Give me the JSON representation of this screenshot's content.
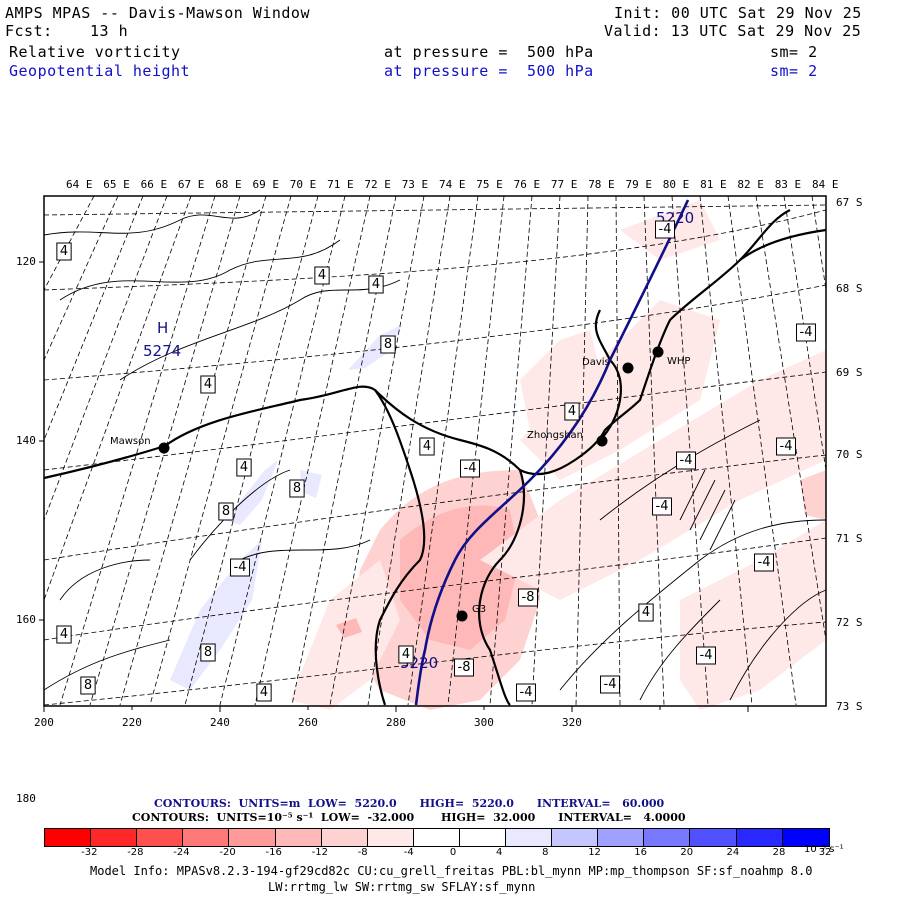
{
  "header": {
    "title": "AMPS MPAS -- Davis-Mawson Window",
    "fcst_label": "Fcst:",
    "fcst_value": "13 h",
    "init": "Init: 00 UTC Sat 29 Nov 25",
    "valid": "Valid: 13 UTC Sat 29 Nov 25",
    "field1": {
      "name": "Relative vorticity",
      "pressure": "at pressure =  500 hPa",
      "sm": "sm= 2"
    },
    "field2": {
      "name": "Geopotential height",
      "pressure": "at pressure =  500 hPa",
      "sm": "sm= 2"
    }
  },
  "axes": {
    "top_lon_labels": [
      "64 E",
      "65 E",
      "66 E",
      "67 E",
      "68 E",
      "69 E",
      "70 E",
      "71 E",
      "72 E",
      "73 E",
      "74 E",
      "75 E",
      "76 E",
      "77 E",
      "78 E",
      "79 E",
      "80 E",
      "81 E",
      "82 E",
      "83 E",
      "84 E"
    ],
    "right_lat_labels": [
      "67 S",
      "68 S",
      "69 S",
      "70 S",
      "71 S",
      "72 S",
      "73 S"
    ],
    "bottom_x_ticks": [
      "200",
      "220",
      "240",
      "260",
      "280",
      "300",
      "320"
    ],
    "left_y_ticks": [
      "120",
      "140",
      "160",
      "180"
    ]
  },
  "stations": [
    {
      "name": "Mawson"
    },
    {
      "name": "Davis"
    },
    {
      "name": "WHP"
    },
    {
      "name": "Zhongshan"
    },
    {
      "name": "G3"
    }
  ],
  "height_labels": {
    "high_letter": "H",
    "high_value": "5274",
    "contour_top": "5220",
    "contour_bottom": "5220"
  },
  "vorticity_labels": [
    "4",
    "4",
    "4",
    "4",
    "8",
    "4",
    "-4",
    "-4",
    "4",
    "-4",
    "4",
    "8",
    "8",
    "-4",
    "-4",
    "-4",
    "4",
    "-8",
    "-4",
    "-8",
    "8",
    "4",
    "4",
    "-4",
    "-4",
    "-4",
    "-4",
    "4",
    "8"
  ],
  "contour_info": {
    "line1": "CONTOURS:  UNITS=m  LOW=  5220.0      HIGH=  5220.0      INTERVAL=   60.000",
    "line2": "CONTOURS:  UNITS=10⁻⁵ s⁻¹  LOW=  -32.000       HIGH=  32.000      INTERVAL=   4.0000"
  },
  "colorbar": {
    "labels": [
      "-32",
      "-28",
      "-24",
      "-20",
      "-16",
      "-12",
      "-8",
      "-4",
      "0",
      "4",
      "8",
      "12",
      "16",
      "20",
      "24",
      "28",
      "32"
    ],
    "units": "10⁻⁵ s⁻¹",
    "colors": [
      "#ff0000",
      "#ff2828",
      "#ff5050",
      "#ff7878",
      "#ff9a9a",
      "#ffb8b8",
      "#ffd2d2",
      "#ffe8e8",
      "#ffffff",
      "#ffffff",
      "#e8e8ff",
      "#c6c6ff",
      "#a0a0ff",
      "#7878ff",
      "#5050ff",
      "#2828ff",
      "#0000ff"
    ]
  },
  "footer": {
    "model_info": "Model Info: MPASv8.2.3-194-gf29cd82c CU:cu_grell_freitas PBL:bl_mynn MP:mp_thompson SF:sf_noahmp 8.0",
    "model_info2": "LW:rrtmg_lw SW:rrtmg_sw SFLAY:sf_mynn"
  }
}
